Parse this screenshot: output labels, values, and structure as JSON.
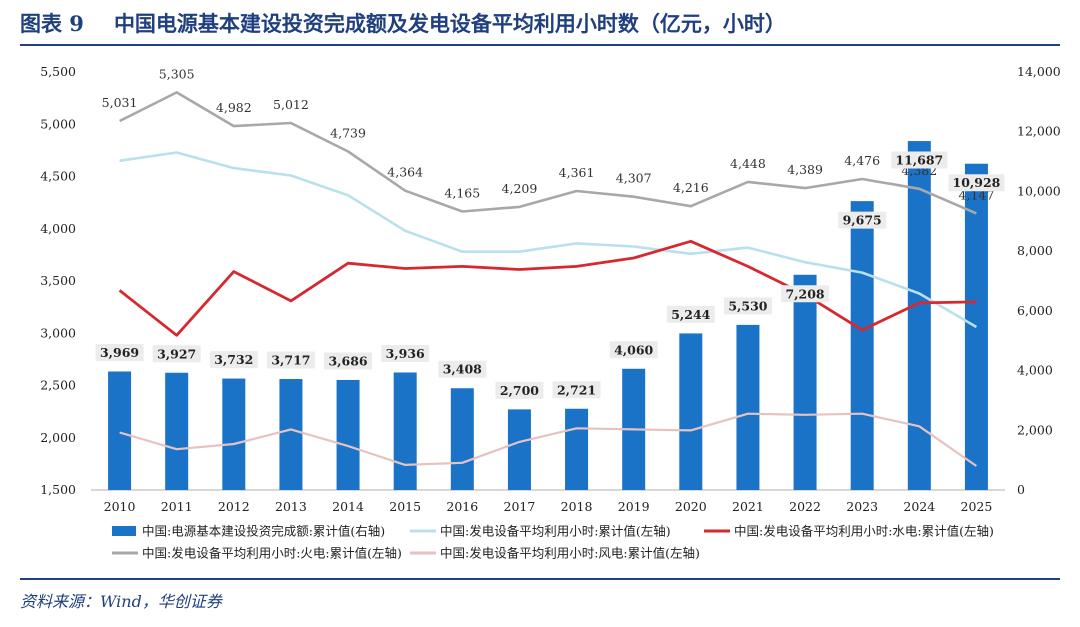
{
  "title": {
    "label": "图表 9",
    "text": "中国电源基本建设投资完成额及发电设备平均利用小时数（亿元，小时）"
  },
  "source": "资料来源：Wind，华创证券",
  "colors": {
    "bar": "#1a73c7",
    "total": "#b9e0ec",
    "hydro": "#d7282f",
    "thermal": "#a8a8a8",
    "wind": "#e6c2c2",
    "title": "#1f3f7f"
  },
  "chart_data": {
    "type": "bar+line",
    "categories": [
      "2010",
      "2011",
      "2012",
      "2013",
      "2014",
      "2015",
      "2016",
      "2017",
      "2018",
      "2019",
      "2020",
      "2021",
      "2022",
      "2023",
      "2024",
      "2025"
    ],
    "left_axis": {
      "min": 1500,
      "max": 5500,
      "ticks": [
        "1,500",
        "2,000",
        "2,500",
        "3,000",
        "3,500",
        "4,000",
        "4,500",
        "5,000",
        "5,500"
      ]
    },
    "right_axis": {
      "min": 0,
      "max": 14000,
      "ticks": [
        "0",
        "2,000",
        "4,000",
        "6,000",
        "8,000",
        "10,000",
        "12,000",
        "14,000"
      ]
    },
    "series": [
      {
        "name": "中国:电源基本建设投资完成额:累计值(右轴)",
        "type": "bar",
        "axis": "right",
        "values": [
          3969,
          3927,
          3732,
          3717,
          3686,
          3936,
          3408,
          2700,
          2721,
          4060,
          5244,
          5530,
          7208,
          9675,
          11687,
          10928
        ],
        "labels": [
          "3,969",
          "3,927",
          "3,732",
          "3,717",
          "3,686",
          "3,936",
          "3,408",
          "2,700",
          "2,721",
          "4,060",
          "5,244",
          "5,530",
          "7,208",
          "9,675",
          "11,687",
          "10,928"
        ]
      },
      {
        "name": "中国:发电设备平均利用小时:累计值(左轴)",
        "type": "line",
        "axis": "left",
        "values": [
          4650,
          4730,
          4580,
          4510,
          4320,
          3980,
          3780,
          3780,
          3860,
          3830,
          3760,
          3820,
          3680,
          3580,
          3380,
          3060
        ]
      },
      {
        "name": "中国:发电设备平均利用小时:水电:累计值(左轴)",
        "type": "line",
        "axis": "left",
        "values": [
          3410,
          2980,
          3590,
          3310,
          3670,
          3620,
          3640,
          3610,
          3640,
          3720,
          3880,
          3640,
          3370,
          3030,
          3290,
          3300
        ]
      },
      {
        "name": "中国:发电设备平均利用小时:火电:累计值(左轴)",
        "type": "line",
        "axis": "left",
        "values": [
          5031,
          5305,
          4982,
          5012,
          4739,
          4364,
          4165,
          4209,
          4361,
          4307,
          4216,
          4448,
          4389,
          4476,
          4382,
          4147
        ],
        "labels": [
          "5,031",
          "5,305",
          "4,982",
          "5,012",
          "4,739",
          "4,364",
          "4,165",
          "4,209",
          "4,361",
          "4,307",
          "4,216",
          "4,448",
          "4,389",
          "4,476",
          "4,382",
          "4,147"
        ]
      },
      {
        "name": "中国:发电设备平均利用小时:风电:累计值(左轴)",
        "type": "line",
        "axis": "left",
        "values": [
          2050,
          1890,
          1940,
          2080,
          1920,
          1740,
          1760,
          1960,
          2090,
          2080,
          2070,
          2230,
          2220,
          2230,
          2110,
          1730
        ]
      }
    ],
    "legend_position": "bottom"
  }
}
